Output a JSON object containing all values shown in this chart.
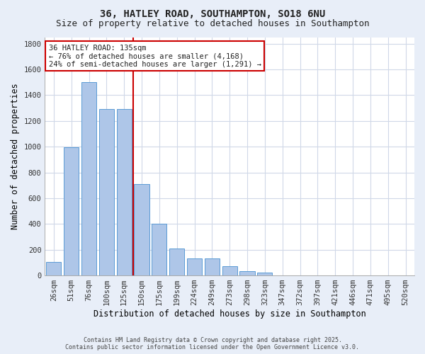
{
  "title_line1": "36, HATLEY ROAD, SOUTHAMPTON, SO18 6NU",
  "title_line2": "Size of property relative to detached houses in Southampton",
  "xlabel": "Distribution of detached houses by size in Southampton",
  "ylabel": "Number of detached properties",
  "categories": [
    "26sqm",
    "51sqm",
    "76sqm",
    "100sqm",
    "125sqm",
    "150sqm",
    "175sqm",
    "199sqm",
    "224sqm",
    "249sqm",
    "273sqm",
    "298sqm",
    "323sqm",
    "347sqm",
    "372sqm",
    "397sqm",
    "421sqm",
    "446sqm",
    "471sqm",
    "495sqm",
    "520sqm"
  ],
  "values": [
    105,
    995,
    1500,
    1290,
    1290,
    710,
    400,
    210,
    130,
    130,
    70,
    35,
    22,
    0,
    0,
    0,
    0,
    0,
    0,
    0,
    0
  ],
  "bar_color": "#aec6e8",
  "bar_edge_color": "#5b9bd5",
  "vline_x": 4.5,
  "vline_color": "#cc0000",
  "annotation_text": "36 HATLEY ROAD: 135sqm\n← 76% of detached houses are smaller (4,168)\n24% of semi-detached houses are larger (1,291) →",
  "annotation_box_color": "#cc0000",
  "plot_bg_color": "#ffffff",
  "fig_bg_color": "#e8eef8",
  "grid_color": "#d0d8e8",
  "ylim": [
    0,
    1850
  ],
  "yticks": [
    0,
    200,
    400,
    600,
    800,
    1000,
    1200,
    1400,
    1600,
    1800
  ],
  "footer_text": "Contains HM Land Registry data © Crown copyright and database right 2025.\nContains public sector information licensed under the Open Government Licence v3.0.",
  "title_fontsize": 10,
  "subtitle_fontsize": 9,
  "axis_label_fontsize": 8.5,
  "tick_fontsize": 7.5,
  "annotation_fontsize": 7.5
}
